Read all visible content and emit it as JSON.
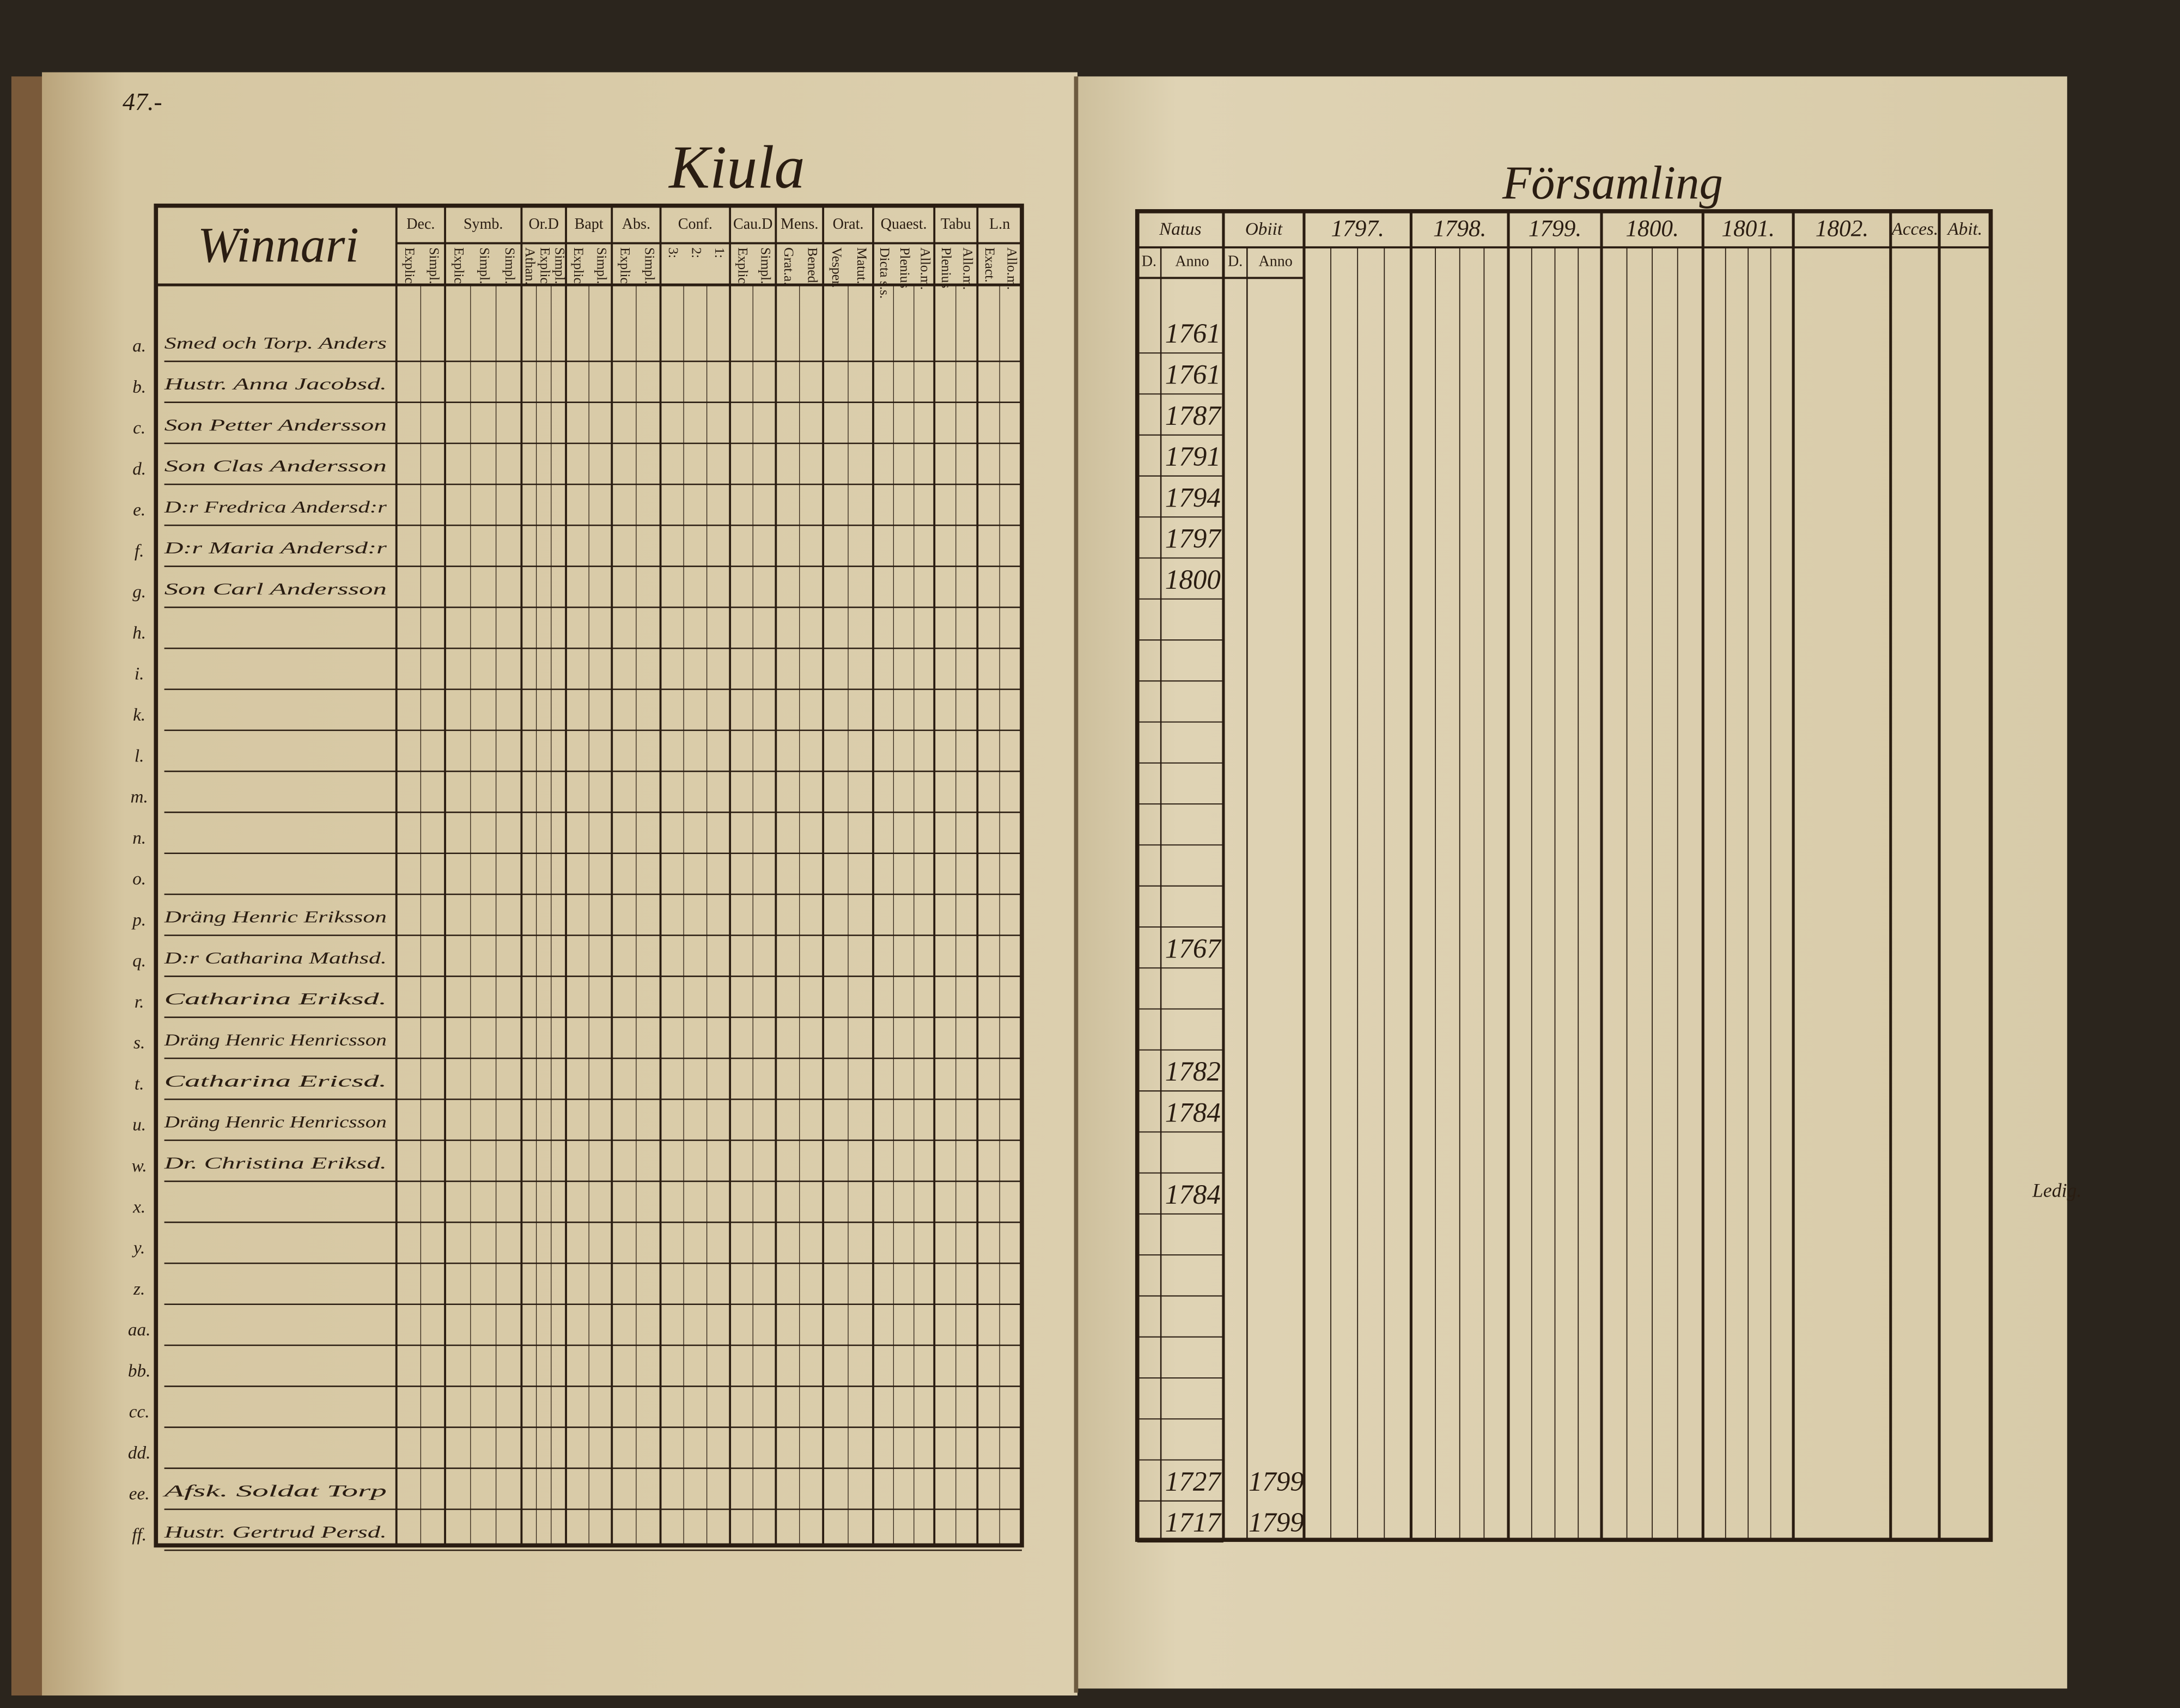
{
  "left_page": {
    "page_number": "47.-",
    "title": "Kiula",
    "table": {
      "corner": "Winnari",
      "headers": [
        "Dec.",
        "Symb.",
        "Or.D",
        "Bapt",
        "Abs.",
        "Conf.",
        "Cau.D",
        "Mens.",
        "Orat.",
        "Quaest.",
        "Tabu",
        "L.n"
      ],
      "subheaders": [
        [
          "Explic.",
          "Simpl."
        ],
        [
          "Explic.",
          "Simpl.",
          "Simpl."
        ],
        [
          "Athan.",
          "Explic.",
          "Simpl."
        ],
        [
          "Explic.",
          "Simpl."
        ],
        [
          "Explic.",
          "Simpl."
        ],
        [
          "3:",
          "2:",
          "1:"
        ],
        [
          "Explic.",
          "Simpl."
        ],
        [
          "Grat.a.",
          "Bened."
        ],
        [
          "Vesper.",
          "Matut."
        ],
        [
          "Dicta s.s.",
          "Plenius",
          "Allo.m."
        ],
        [
          "Plenius",
          "Allo.m."
        ],
        [
          "Exact.",
          "Allo.m."
        ]
      ],
      "row_labels": [
        "a.",
        "b.",
        "c.",
        "d.",
        "e.",
        "f.",
        "g.",
        "h.",
        "i.",
        "k.",
        "l.",
        "m.",
        "n.",
        "o.",
        "p.",
        "q.",
        "r.",
        "s.",
        "t.",
        "u.",
        "w.",
        "x.",
        "y.",
        "z.",
        "aa.",
        "bb.",
        "cc.",
        "dd.",
        "ee.",
        "ff."
      ],
      "names": [
        "Smed och Torp. Anders",
        "Hustr. Anna Jacobsd.",
        "Son Petter Andersson",
        "Son Clas Andersson",
        "D:r Fredrica Andersd:r",
        "D:r Maria Andersd:r",
        "Son Carl Andersson",
        null,
        null,
        null,
        null,
        null,
        null,
        null,
        "Dräng Henric Eriksson",
        "D:r Catharina Mathsd.",
        "Catharina Eriksd.",
        "Dräng Henric Henricsson",
        "Catharina Ericsd.",
        "Dräng Henric Henricsson",
        "Dr. Christina Eriksd.",
        null,
        null,
        null,
        null,
        null,
        null,
        null,
        "Afsk. Soldat Torp",
        "Hustr. Gertrud Persd."
      ]
    }
  },
  "right_page": {
    "title": "Församling",
    "headers": [
      "Natus",
      "Obiit",
      "1797.",
      "1798.",
      "1799.",
      "1800.",
      "1801.",
      "1802.",
      "Acces.",
      "Abit."
    ],
    "subheaders": [
      "D.",
      "Anno",
      "D.",
      "Anno"
    ],
    "birth_years": [
      "1761",
      "1761",
      "1787",
      "1791",
      "1794",
      "1797",
      "1800",
      null,
      null,
      null,
      null,
      null,
      null,
      null,
      null,
      "1767",
      null,
      null,
      "1782",
      "1784",
      null,
      "1784",
      null,
      null,
      null,
      null,
      null,
      null,
      "1727",
      "1717"
    ],
    "death_years": [
      null,
      null,
      null,
      null,
      null,
      null,
      null,
      null,
      null,
      null,
      null,
      null,
      null,
      null,
      null,
      null,
      null,
      null,
      null,
      null,
      null,
      null,
      null,
      null,
      null,
      null,
      null,
      null,
      "1799",
      "1799"
    ],
    "note": "Ledig."
  }
}
